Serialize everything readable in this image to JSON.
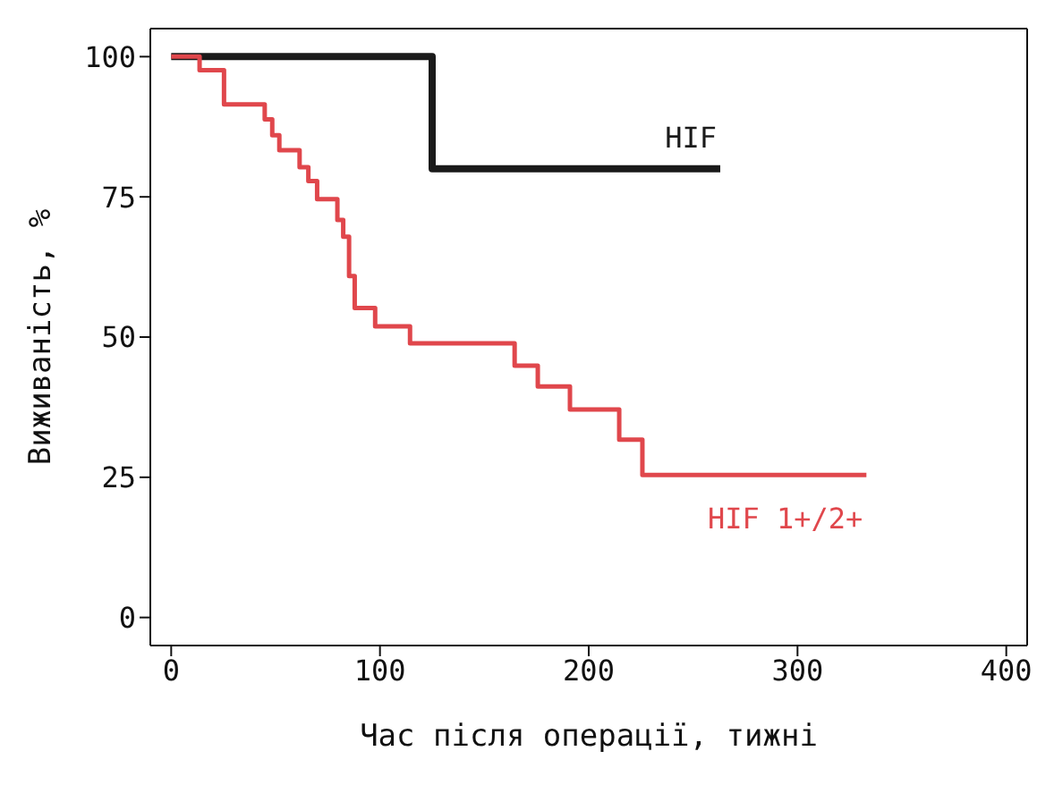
{
  "chart_data": {
    "type": "step",
    "xlabel": "Час після операції, тижні",
    "ylabel": "Виживаність, %",
    "xlim": [
      -10,
      410
    ],
    "xticks": [
      0,
      100,
      200,
      300,
      400
    ],
    "ylim": [
      -5,
      105
    ],
    "yticks": [
      0,
      25,
      50,
      75,
      100
    ],
    "legend": false,
    "marker": "none",
    "line_style": "solid",
    "series": [
      {
        "name": "HIF",
        "color": "#1a1a1a",
        "x": [
          0,
          125,
          263
        ],
        "values": [
          100,
          80,
          80
        ]
      },
      {
        "name": "HIF 1+/2+",
        "color": "#e0474c",
        "x": [
          0,
          13.6,
          25.3,
          44.8,
          48.4,
          51.8,
          61.5,
          65.7,
          69.9,
          79.6,
          82.4,
          85.2,
          87.9,
          97.7,
          114.4,
          164.5,
          175.6,
          191,
          214.6,
          225.7,
          333
        ],
        "values": [
          100,
          97.6,
          91.5,
          88.8,
          86,
          83.3,
          80.3,
          77.8,
          74.6,
          70.9,
          67.9,
          60.9,
          55.2,
          51.9,
          48.9,
          44.9,
          41.2,
          37.1,
          31.7,
          25.4,
          25.4
        ]
      }
    ]
  }
}
